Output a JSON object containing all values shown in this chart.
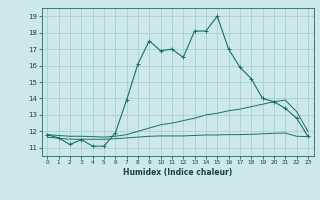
{
  "xlabel": "Humidex (Indice chaleur)",
  "background_color": "#cce8e8",
  "line_color": "#1a6e6a",
  "grid_color": "#aacece",
  "xlim": [
    -0.5,
    23.5
  ],
  "ylim": [
    10.5,
    19.5
  ],
  "yticks": [
    11,
    12,
    13,
    14,
    15,
    16,
    17,
    18,
    19
  ],
  "xticks": [
    0,
    1,
    2,
    3,
    4,
    5,
    6,
    7,
    8,
    9,
    10,
    11,
    12,
    13,
    14,
    15,
    16,
    17,
    18,
    19,
    20,
    21,
    22,
    23
  ],
  "series1_x": [
    0,
    1,
    2,
    3,
    4,
    5,
    6,
    7,
    8,
    9,
    10,
    11,
    12,
    13,
    14,
    15,
    16,
    17,
    18,
    19,
    20,
    21,
    22,
    23
  ],
  "series1_y": [
    11.8,
    11.6,
    11.2,
    11.5,
    11.1,
    11.1,
    11.9,
    13.9,
    16.1,
    17.5,
    16.9,
    17.0,
    16.5,
    18.1,
    18.1,
    19.0,
    17.0,
    15.9,
    15.2,
    14.0,
    13.8,
    13.4,
    12.8,
    11.7
  ],
  "series2_x": [
    0,
    1,
    2,
    3,
    4,
    5,
    6,
    7,
    8,
    9,
    10,
    11,
    12,
    13,
    14,
    15,
    16,
    17,
    18,
    19,
    20,
    21,
    22,
    23
  ],
  "series2_y": [
    11.65,
    11.58,
    11.52,
    11.52,
    11.52,
    11.52,
    11.55,
    11.6,
    11.65,
    11.7,
    11.72,
    11.72,
    11.72,
    11.75,
    11.78,
    11.78,
    11.8,
    11.8,
    11.82,
    11.85,
    11.88,
    11.9,
    11.7,
    11.68
  ],
  "series3_x": [
    0,
    1,
    2,
    3,
    4,
    5,
    6,
    7,
    8,
    9,
    10,
    11,
    12,
    13,
    14,
    15,
    16,
    17,
    18,
    19,
    20,
    21,
    22,
    23
  ],
  "series3_y": [
    11.8,
    11.75,
    11.7,
    11.7,
    11.68,
    11.65,
    11.7,
    11.8,
    12.0,
    12.2,
    12.4,
    12.5,
    12.65,
    12.8,
    13.0,
    13.1,
    13.25,
    13.35,
    13.5,
    13.65,
    13.8,
    13.9,
    13.2,
    12.0
  ]
}
